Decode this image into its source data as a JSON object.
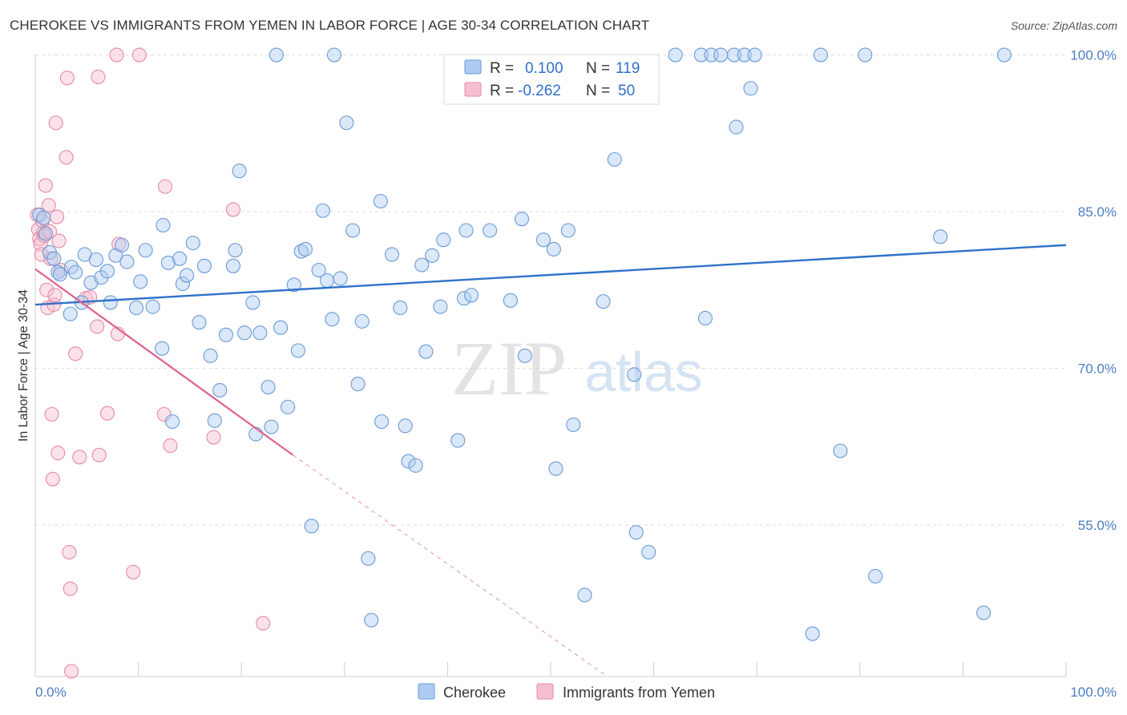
{
  "header": {
    "title": "CHEROKEE VS IMMIGRANTS FROM YEMEN IN LABOR FORCE | AGE 30-34 CORRELATION CHART",
    "source": "Source: ZipAtlas.com"
  },
  "watermark": {
    "zip": "ZIP",
    "atlas": "atlas"
  },
  "colors": {
    "blue_fill": "#aecbf1",
    "blue_stroke": "#6a9ad6",
    "blue_line": "#2f72c8",
    "pink_fill": "#f6bfd0",
    "pink_stroke": "#e58aa8",
    "pink_line": "#e0608e",
    "axis_text": "#4a7cc4",
    "grid": "#dddddd"
  },
  "stats": [
    {
      "series": "Cherokee",
      "r_label": "R =",
      "r_value": "0.100",
      "n_label": "N =",
      "n_value": "119"
    },
    {
      "series": "Immigrants from Yemen",
      "r_label": "R =",
      "r_value": "-0.262",
      "n_label": "N =",
      "n_value": "50"
    }
  ],
  "chart_data": {
    "type": "scatter",
    "title": "CHEROKEE VS IMMIGRANTS FROM YEMEN IN LABOR FORCE | AGE 30-34 CORRELATION CHART",
    "xlabel": "",
    "ylabel": "In Labor Force | Age 30-34",
    "xlim": [
      0,
      100
    ],
    "ylim": [
      40.5,
      101.5
    ],
    "x_ticks": [
      "0.0%",
      "100.0%"
    ],
    "y_ticks": [
      {
        "value": 100,
        "label": "100.0%"
      },
      {
        "value": 85,
        "label": "85.0%"
      },
      {
        "value": 70,
        "label": "70.0%"
      },
      {
        "value": 55,
        "label": "55.0%"
      }
    ],
    "legend": [
      "Cherokee",
      "Immigrants from Yemen"
    ],
    "series": [
      {
        "name": "Cherokee",
        "trend": {
          "x": [
            0,
            100
          ],
          "y": [
            76.1,
            81.8
          ]
        },
        "points": [
          [
            0.4,
            84.7
          ],
          [
            0.8,
            84.4
          ],
          [
            1.0,
            82.9
          ],
          [
            1.4,
            81.1
          ],
          [
            1.8,
            80.5
          ],
          [
            2.2,
            79.2
          ],
          [
            2.4,
            79.0
          ],
          [
            3.4,
            75.2
          ],
          [
            3.5,
            79.7
          ],
          [
            3.9,
            79.2
          ],
          [
            4.5,
            76.3
          ],
          [
            4.8,
            80.9
          ],
          [
            5.4,
            78.2
          ],
          [
            5.9,
            80.4
          ],
          [
            6.4,
            78.7
          ],
          [
            7.0,
            79.3
          ],
          [
            7.3,
            76.3
          ],
          [
            7.8,
            80.8
          ],
          [
            8.4,
            81.8
          ],
          [
            8.9,
            80.2
          ],
          [
            9.8,
            75.8
          ],
          [
            10.2,
            78.3
          ],
          [
            10.7,
            81.3
          ],
          [
            11.4,
            75.9
          ],
          [
            12.3,
            71.9
          ],
          [
            12.4,
            83.7
          ],
          [
            12.9,
            80.1
          ],
          [
            13.3,
            64.9
          ],
          [
            14.0,
            80.5
          ],
          [
            14.3,
            78.1
          ],
          [
            14.7,
            78.9
          ],
          [
            15.3,
            82.0
          ],
          [
            15.9,
            74.4
          ],
          [
            16.4,
            79.8
          ],
          [
            17.0,
            71.2
          ],
          [
            17.4,
            65.0
          ],
          [
            17.9,
            67.9
          ],
          [
            18.5,
            73.2
          ],
          [
            19.2,
            79.8
          ],
          [
            19.4,
            81.3
          ],
          [
            19.8,
            88.9
          ],
          [
            20.3,
            73.4
          ],
          [
            21.1,
            76.3
          ],
          [
            21.4,
            63.7
          ],
          [
            21.8,
            73.4
          ],
          [
            22.6,
            68.2
          ],
          [
            22.9,
            64.4
          ],
          [
            23.4,
            100.0
          ],
          [
            23.8,
            73.9
          ],
          [
            24.5,
            66.3
          ],
          [
            25.1,
            78.0
          ],
          [
            25.5,
            71.7
          ],
          [
            25.8,
            81.2
          ],
          [
            26.2,
            81.4
          ],
          [
            26.8,
            54.9
          ],
          [
            27.5,
            79.4
          ],
          [
            27.9,
            85.1
          ],
          [
            28.3,
            78.4
          ],
          [
            28.8,
            74.7
          ],
          [
            29.0,
            100.0
          ],
          [
            29.6,
            78.6
          ],
          [
            30.2,
            93.5
          ],
          [
            30.8,
            83.2
          ],
          [
            31.3,
            68.5
          ],
          [
            31.7,
            74.5
          ],
          [
            32.3,
            51.8
          ],
          [
            32.6,
            45.9
          ],
          [
            33.5,
            86.0
          ],
          [
            33.6,
            64.9
          ],
          [
            34.6,
            80.9
          ],
          [
            35.4,
            75.8
          ],
          [
            35.9,
            64.5
          ],
          [
            36.2,
            61.1
          ],
          [
            36.9,
            60.7
          ],
          [
            37.5,
            79.9
          ],
          [
            37.9,
            71.6
          ],
          [
            38.5,
            80.8
          ],
          [
            39.3,
            75.9
          ],
          [
            39.6,
            82.3
          ],
          [
            41.0,
            63.1
          ],
          [
            41.6,
            76.7
          ],
          [
            41.8,
            83.2
          ],
          [
            42.3,
            77.0
          ],
          [
            44.1,
            83.2
          ],
          [
            46.1,
            76.5
          ],
          [
            47.2,
            84.3
          ],
          [
            47.5,
            71.2
          ],
          [
            49.3,
            82.3
          ],
          [
            50.3,
            81.4
          ],
          [
            50.5,
            60.4
          ],
          [
            51.7,
            83.2
          ],
          [
            52.2,
            64.6
          ],
          [
            53.3,
            48.3
          ],
          [
            55.1,
            76.4
          ],
          [
            56.2,
            90.0
          ],
          [
            58.1,
            69.4
          ],
          [
            58.3,
            54.3
          ],
          [
            59.5,
            52.4
          ],
          [
            62.1,
            100.0
          ],
          [
            64.6,
            100.0
          ],
          [
            65.0,
            74.8
          ],
          [
            65.6,
            100.0
          ],
          [
            66.5,
            100.0
          ],
          [
            67.8,
            100.0
          ],
          [
            68.0,
            93.1
          ],
          [
            68.8,
            100.0
          ],
          [
            69.4,
            96.8
          ],
          [
            69.8,
            100.0
          ],
          [
            75.4,
            44.6
          ],
          [
            76.2,
            100.0
          ],
          [
            78.1,
            62.1
          ],
          [
            80.5,
            100.0
          ],
          [
            81.5,
            50.1
          ],
          [
            87.8,
            82.6
          ],
          [
            92.0,
            46.6
          ],
          [
            94.0,
            100.0
          ]
        ]
      },
      {
        "name": "Immigrants from Yemen",
        "trend": {
          "x": [
            0,
            25
          ],
          "y": [
            79.5,
            61.7
          ]
        },
        "trend_dashed": {
          "x": [
            25,
            55.5
          ],
          "y": [
            61.7,
            40.5
          ]
        },
        "points": [
          [
            0.2,
            84.7
          ],
          [
            0.3,
            83.3
          ],
          [
            0.4,
            82.4
          ],
          [
            0.5,
            81.9
          ],
          [
            0.6,
            80.9
          ],
          [
            0.7,
            84.1
          ],
          [
            0.8,
            83.0
          ],
          [
            0.9,
            82.7
          ],
          [
            1.0,
            87.5
          ],
          [
            1.1,
            77.5
          ],
          [
            1.2,
            75.8
          ],
          [
            1.3,
            85.6
          ],
          [
            1.4,
            83.1
          ],
          [
            1.5,
            80.5
          ],
          [
            1.6,
            65.6
          ],
          [
            1.7,
            59.4
          ],
          [
            1.8,
            76.1
          ],
          [
            1.9,
            77.0
          ],
          [
            2.0,
            93.5
          ],
          [
            2.1,
            84.5
          ],
          [
            2.2,
            61.9
          ],
          [
            2.3,
            82.2
          ],
          [
            2.5,
            79.4
          ],
          [
            3.0,
            90.2
          ],
          [
            3.1,
            97.8
          ],
          [
            3.3,
            52.4
          ],
          [
            3.4,
            48.9
          ],
          [
            3.5,
            41.0
          ],
          [
            3.9,
            71.4
          ],
          [
            4.3,
            61.5
          ],
          [
            4.9,
            76.7
          ],
          [
            5.3,
            76.8
          ],
          [
            6.0,
            74.0
          ],
          [
            6.1,
            97.9
          ],
          [
            6.2,
            61.7
          ],
          [
            7.0,
            65.7
          ],
          [
            7.9,
            100.0
          ],
          [
            8.0,
            73.3
          ],
          [
            8.1,
            81.9
          ],
          [
            9.5,
            50.5
          ],
          [
            10.1,
            100.0
          ],
          [
            12.5,
            65.6
          ],
          [
            12.6,
            87.4
          ],
          [
            13.1,
            62.6
          ],
          [
            17.3,
            63.4
          ],
          [
            19.2,
            85.2
          ],
          [
            22.1,
            45.6
          ]
        ]
      }
    ]
  }
}
